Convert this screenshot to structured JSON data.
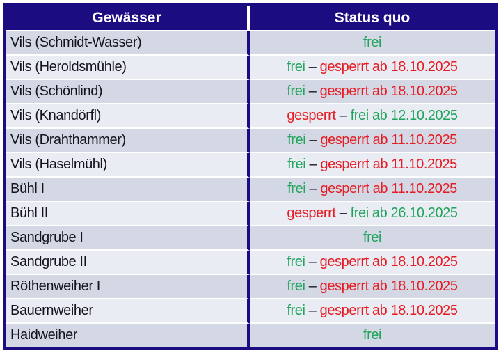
{
  "colors": {
    "navy": "#1c0c82",
    "row_dark": "#d4d7e4",
    "row_light": "#eaecf4",
    "green": "#1fa45c",
    "red": "#e51c23",
    "text": "#14141e"
  },
  "table": {
    "headers": [
      "Gewässer",
      "Status quo"
    ],
    "rows": [
      {
        "gewaesser": "Vils (Schmidt-Wasser)",
        "status": [
          {
            "text": "frei",
            "color": "green"
          }
        ]
      },
      {
        "gewaesser": "Vils (Heroldsmühle)",
        "status": [
          {
            "text": "frei",
            "color": "green"
          },
          {
            "text": " – ",
            "color": "text"
          },
          {
            "text": "gesperrt ab 18.10.2025",
            "color": "red"
          }
        ]
      },
      {
        "gewaesser": "Vils (Schönlind)",
        "status": [
          {
            "text": "frei",
            "color": "green"
          },
          {
            "text": " – ",
            "color": "text"
          },
          {
            "text": "gesperrt ab 18.10.2025",
            "color": "red"
          }
        ]
      },
      {
        "gewaesser": "Vils (Knandörfl)",
        "status": [
          {
            "text": "gesperrt",
            "color": "red"
          },
          {
            "text": " – ",
            "color": "text"
          },
          {
            "text": "frei ab 12.10.2025",
            "color": "green"
          }
        ]
      },
      {
        "gewaesser": "Vils (Drahthammer)",
        "status": [
          {
            "text": "frei",
            "color": "green"
          },
          {
            "text": " – ",
            "color": "text"
          },
          {
            "text": "gesperrt ab 11.10.2025",
            "color": "red"
          }
        ]
      },
      {
        "gewaesser": "Vils (Haselmühl)",
        "status": [
          {
            "text": "frei",
            "color": "green"
          },
          {
            "text": " – ",
            "color": "text"
          },
          {
            "text": "gesperrt ab 11.10.2025",
            "color": "red"
          }
        ]
      },
      {
        "gewaesser": "Bühl I",
        "status": [
          {
            "text": "frei",
            "color": "green"
          },
          {
            "text": " – ",
            "color": "text"
          },
          {
            "text": "gesperrt ab 11.10.2025",
            "color": "red"
          }
        ]
      },
      {
        "gewaesser": "Bühl II",
        "status": [
          {
            "text": "gesperrt",
            "color": "red"
          },
          {
            "text": " – ",
            "color": "text"
          },
          {
            "text": "frei ab 26.10.2025",
            "color": "green"
          }
        ]
      },
      {
        "gewaesser": "Sandgrube I",
        "status": [
          {
            "text": "frei",
            "color": "green"
          }
        ]
      },
      {
        "gewaesser": "Sandgrube II",
        "status": [
          {
            "text": "frei",
            "color": "green"
          },
          {
            "text": " – ",
            "color": "text"
          },
          {
            "text": "gesperrt ab 18.10.2025",
            "color": "red"
          }
        ]
      },
      {
        "gewaesser": "Röthenweiher I",
        "status": [
          {
            "text": "frei",
            "color": "green"
          },
          {
            "text": " – ",
            "color": "text"
          },
          {
            "text": "gesperrt ab 18.10.2025",
            "color": "red"
          }
        ]
      },
      {
        "gewaesser": "Bauernweiher",
        "status": [
          {
            "text": "frei",
            "color": "green"
          },
          {
            "text": " – ",
            "color": "text"
          },
          {
            "text": "gesperrt ab 18.10.2025",
            "color": "red"
          }
        ]
      },
      {
        "gewaesser": "Haidweiher",
        "status": [
          {
            "text": "frei",
            "color": "green"
          }
        ]
      }
    ]
  }
}
